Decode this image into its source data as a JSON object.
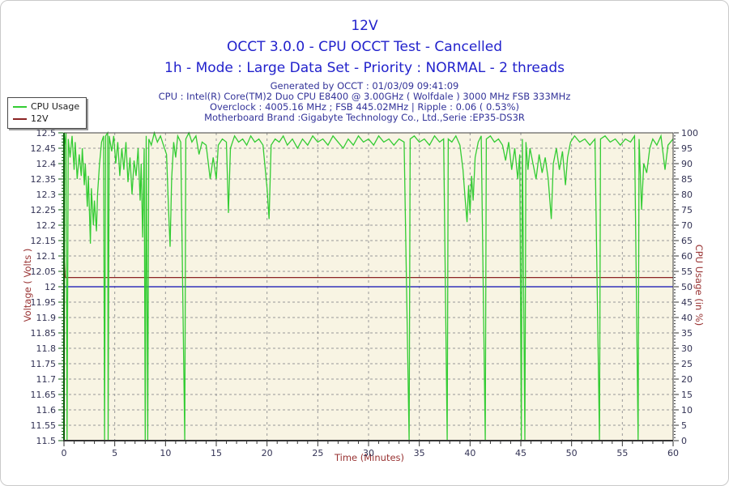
{
  "header": {
    "title": "12V",
    "subtitle": "OCCT 3.0.0 - CPU OCCT Test - Cancelled",
    "mode_line": "1h - Mode : Large Data Set - Priority : NORMAL - 2 threads",
    "generated": "Generated by OCCT : 01/03/09 09:41:09",
    "cpu": "CPU : Intel(R) Core(TM)2 Duo CPU E8400 @ 3.00GHz ( Wolfdale ) 3000 MHz FSB 333MHz",
    "overclock": "Overclock : 4005.16 MHz ; FSB 445.02MHz | Ripple : 0.06 ( 0.53%)",
    "motherboard": "Motherboard Brand :Gigabyte Technology Co., Ltd.,Serie :EP35-DS3R"
  },
  "legend": {
    "items": [
      {
        "label": "CPU Usage",
        "color": "#33CC33"
      },
      {
        "label": "12V",
        "color": "#8B2323"
      }
    ]
  },
  "axes": {
    "left_title": "Voltage ( Volts )",
    "right_title": "CPU Usage (in %)",
    "x_title": "Time (Minutes)"
  },
  "colors": {
    "title_blue": "#2222CC",
    "info_navy": "#333399",
    "axis_title_red": "#993333",
    "tick_label": "#333355",
    "plot_background": "#F8F4E3",
    "grid": "#999999",
    "cpu_green": "#33CC33",
    "volt_red": "#8B2323",
    "baseline_blue": "#3333BB",
    "axis_green": "#0B5E0B"
  },
  "chart_data": {
    "type": "line",
    "title": "12V",
    "plot_bg": "#F8F4E3",
    "grid_color": "#999999",
    "x_axis": {
      "label": "Time (Minutes)",
      "min": 0,
      "max": 60,
      "ticks": [
        "0",
        "5",
        "10",
        "15",
        "20",
        "25",
        "30",
        "35",
        "40",
        "45",
        "50",
        "55",
        "60"
      ]
    },
    "y_left": {
      "label": "Voltage ( Volts )",
      "min": 11.5,
      "max": 12.5,
      "ticks": [
        "12.5",
        "12.45",
        "12.4",
        "12.35",
        "12.3",
        "12.25",
        "12.2",
        "12.15",
        "12.1",
        "12.05",
        "12",
        "11.95",
        "11.9",
        "11.85",
        "11.8",
        "11.75",
        "11.7",
        "11.65",
        "11.6",
        "11.55",
        "11.5"
      ]
    },
    "y_right": {
      "label": "CPU Usage (in %)",
      "min": 0,
      "max": 100,
      "ticks": [
        "100",
        "95",
        "90",
        "85",
        "80",
        "75",
        "70",
        "65",
        "60",
        "55",
        "50",
        "45",
        "40",
        "35",
        "30",
        "25",
        "20",
        "15",
        "10",
        "5",
        "0"
      ]
    },
    "series": [
      {
        "name": "12.0 V baseline",
        "axis": "left",
        "color": "#3333BB",
        "width": 1.5,
        "points": [
          [
            0,
            12.0
          ],
          [
            60,
            12.0
          ]
        ]
      },
      {
        "name": "12V",
        "axis": "left",
        "color": "#8B2323",
        "width": 1.3,
        "points": [
          [
            0,
            12.1
          ],
          [
            0.12,
            12.03
          ],
          [
            60,
            12.03
          ]
        ]
      },
      {
        "name": "CPU Usage",
        "axis": "right",
        "color": "#33CC33",
        "width": 1.3,
        "points": [
          [
            0,
            0
          ],
          [
            0.07,
            96
          ],
          [
            0.2,
            100
          ],
          [
            0.3,
            0
          ],
          [
            0.42,
            98
          ],
          [
            0.6,
            92
          ],
          [
            0.8,
            99
          ],
          [
            1.0,
            88
          ],
          [
            1.1,
            97
          ],
          [
            1.3,
            85
          ],
          [
            1.5,
            93
          ],
          [
            1.7,
            86
          ],
          [
            1.8,
            95
          ],
          [
            2.0,
            83
          ],
          [
            2.1,
            90
          ],
          [
            2.3,
            76
          ],
          [
            2.4,
            86
          ],
          [
            2.6,
            64
          ],
          [
            2.7,
            82
          ],
          [
            2.9,
            70
          ],
          [
            3.0,
            78
          ],
          [
            3.2,
            68
          ],
          [
            3.3,
            80
          ],
          [
            3.5,
            90
          ],
          [
            3.7,
            97
          ],
          [
            3.9,
            99
          ],
          [
            4.0,
            0
          ],
          [
            4.1,
            99
          ],
          [
            4.3,
            100
          ],
          [
            4.35,
            0
          ],
          [
            4.45,
            99
          ],
          [
            4.7,
            94
          ],
          [
            4.9,
            99
          ],
          [
            5.1,
            90
          ],
          [
            5.3,
            97
          ],
          [
            5.5,
            86
          ],
          [
            5.7,
            95
          ],
          [
            5.9,
            88
          ],
          [
            6.1,
            97
          ],
          [
            6.3,
            84
          ],
          [
            6.5,
            92
          ],
          [
            6.7,
            80
          ],
          [
            6.9,
            91
          ],
          [
            7.1,
            86
          ],
          [
            7.3,
            95
          ],
          [
            7.5,
            78
          ],
          [
            7.6,
            90
          ],
          [
            7.75,
            66
          ],
          [
            7.9,
            95
          ],
          [
            8.0,
            0
          ],
          [
            8.1,
            99
          ],
          [
            8.25,
            0
          ],
          [
            8.35,
            98
          ],
          [
            8.6,
            96
          ],
          [
            8.9,
            100
          ],
          [
            9.2,
            97
          ],
          [
            9.5,
            99
          ],
          [
            9.8,
            96
          ],
          [
            10.1,
            93
          ],
          [
            10.3,
            75
          ],
          [
            10.45,
            63
          ],
          [
            10.6,
            85
          ],
          [
            10.8,
            97
          ],
          [
            11.0,
            92
          ],
          [
            11.2,
            99
          ],
          [
            11.5,
            97
          ],
          [
            11.9,
            0
          ],
          [
            12.0,
            98
          ],
          [
            12.3,
            100
          ],
          [
            12.6,
            97
          ],
          [
            13.0,
            99
          ],
          [
            13.3,
            93
          ],
          [
            13.6,
            97
          ],
          [
            14.0,
            96
          ],
          [
            14.4,
            85
          ],
          [
            14.7,
            92
          ],
          [
            15.0,
            85
          ],
          [
            15.2,
            96
          ],
          [
            15.6,
            98
          ],
          [
            16.0,
            97
          ],
          [
            16.2,
            74
          ],
          [
            16.4,
            95
          ],
          [
            16.8,
            99
          ],
          [
            17.2,
            97
          ],
          [
            17.6,
            98
          ],
          [
            18.0,
            96
          ],
          [
            18.4,
            99
          ],
          [
            18.8,
            97
          ],
          [
            19.2,
            98
          ],
          [
            19.6,
            96
          ],
          [
            20.0,
            82
          ],
          [
            20.2,
            72
          ],
          [
            20.4,
            96
          ],
          [
            20.8,
            98
          ],
          [
            21.2,
            97
          ],
          [
            21.6,
            99
          ],
          [
            22.0,
            96
          ],
          [
            22.5,
            98
          ],
          [
            23.0,
            95
          ],
          [
            23.5,
            98
          ],
          [
            24.0,
            96
          ],
          [
            24.5,
            99
          ],
          [
            25.0,
            97
          ],
          [
            25.5,
            98
          ],
          [
            26.0,
            96
          ],
          [
            26.5,
            99
          ],
          [
            27.0,
            97
          ],
          [
            27.5,
            95
          ],
          [
            28.0,
            98
          ],
          [
            28.5,
            96
          ],
          [
            29.0,
            99
          ],
          [
            29.5,
            97
          ],
          [
            30.0,
            98
          ],
          [
            30.5,
            96
          ],
          [
            31.0,
            99
          ],
          [
            31.5,
            97
          ],
          [
            32.0,
            98
          ],
          [
            32.5,
            96
          ],
          [
            33.0,
            98
          ],
          [
            33.5,
            97
          ],
          [
            34.0,
            0
          ],
          [
            34.1,
            98
          ],
          [
            34.5,
            99
          ],
          [
            35.0,
            97
          ],
          [
            35.5,
            98
          ],
          [
            36.0,
            96
          ],
          [
            36.5,
            99
          ],
          [
            37.0,
            97
          ],
          [
            37.4,
            98
          ],
          [
            37.75,
            0
          ],
          [
            37.85,
            98
          ],
          [
            38.2,
            97
          ],
          [
            38.6,
            99
          ],
          [
            39.0,
            96
          ],
          [
            39.3,
            88
          ],
          [
            39.5,
            79
          ],
          [
            39.7,
            71
          ],
          [
            39.85,
            83
          ],
          [
            40.0,
            74
          ],
          [
            40.15,
            86
          ],
          [
            40.3,
            78
          ],
          [
            40.5,
            92
          ],
          [
            40.8,
            97
          ],
          [
            41.1,
            99
          ],
          [
            41.5,
            0
          ],
          [
            41.6,
            98
          ],
          [
            42.0,
            99
          ],
          [
            42.4,
            97
          ],
          [
            42.8,
            98
          ],
          [
            43.2,
            96
          ],
          [
            43.5,
            91
          ],
          [
            43.8,
            97
          ],
          [
            44.1,
            88
          ],
          [
            44.4,
            95
          ],
          [
            44.7,
            85
          ],
          [
            44.9,
            93
          ],
          [
            45.05,
            0
          ],
          [
            45.15,
            98
          ],
          [
            45.4,
            0
          ],
          [
            45.5,
            97
          ],
          [
            45.7,
            88
          ],
          [
            45.9,
            95
          ],
          [
            46.2,
            90
          ],
          [
            46.5,
            85
          ],
          [
            46.8,
            93
          ],
          [
            47.1,
            87
          ],
          [
            47.4,
            92
          ],
          [
            47.7,
            85
          ],
          [
            48.0,
            72
          ],
          [
            48.2,
            90
          ],
          [
            48.5,
            95
          ],
          [
            48.8,
            88
          ],
          [
            49.1,
            94
          ],
          [
            49.4,
            83
          ],
          [
            49.6,
            92
          ],
          [
            49.9,
            97
          ],
          [
            50.3,
            99
          ],
          [
            50.8,
            97
          ],
          [
            51.3,
            98
          ],
          [
            51.8,
            96
          ],
          [
            52.3,
            98
          ],
          [
            52.75,
            0
          ],
          [
            52.85,
            98
          ],
          [
            53.3,
            99
          ],
          [
            53.8,
            97
          ],
          [
            54.3,
            98
          ],
          [
            54.8,
            96
          ],
          [
            55.3,
            98
          ],
          [
            55.8,
            97
          ],
          [
            56.2,
            99
          ],
          [
            56.55,
            0
          ],
          [
            56.65,
            98
          ],
          [
            56.9,
            75
          ],
          [
            57.1,
            90
          ],
          [
            57.4,
            87
          ],
          [
            57.7,
            95
          ],
          [
            58.0,
            98
          ],
          [
            58.4,
            96
          ],
          [
            58.8,
            99
          ],
          [
            59.2,
            88
          ],
          [
            59.5,
            96
          ],
          [
            60.0,
            98
          ]
        ]
      }
    ]
  }
}
